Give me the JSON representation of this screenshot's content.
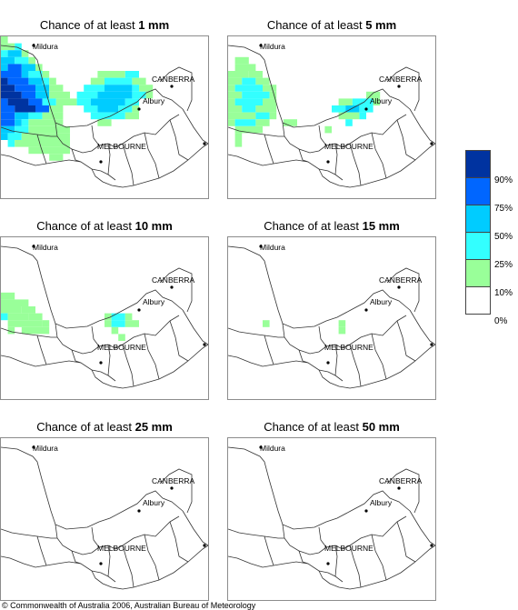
{
  "panels": [
    {
      "title_prefix": "Chance of at least ",
      "amount": "1 mm"
    },
    {
      "title_prefix": "Chance of at least ",
      "amount": "5 mm"
    },
    {
      "title_prefix": "Chance of at least ",
      "amount": "10 mm"
    },
    {
      "title_prefix": "Chance of at least ",
      "amount": "15 mm"
    },
    {
      "title_prefix": "Chance of at least ",
      "amount": "25 mm"
    },
    {
      "title_prefix": "Chance of at least ",
      "amount": "50 mm"
    }
  ],
  "map_labels": {
    "mildura": "Mildura",
    "canberra": "CANBERRA",
    "albury": "Albury",
    "melbourne": "MELBOURNE"
  },
  "legend": {
    "labels": [
      "90%",
      "75%",
      "50%",
      "25%",
      "10%",
      "0%"
    ],
    "colors": [
      "#0033a0",
      "#0066ff",
      "#00ccff",
      "#33ffff",
      "#99ff99",
      "#ffffff"
    ]
  },
  "copyright": "© Commonwealth of Australia 2006, Australian Bureau of Meteorology"
}
